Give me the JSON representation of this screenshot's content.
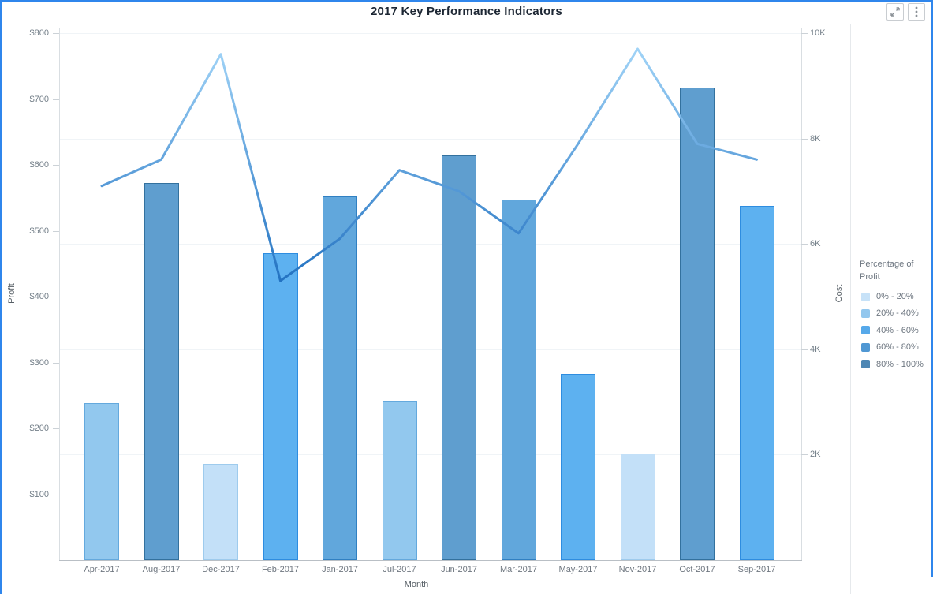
{
  "header": {
    "title": "2017 Key Performance Indicators"
  },
  "chart_data": {
    "type": "combo (bar + line)",
    "title": "2017 Key Performance Indicators",
    "categories": [
      "Apr-2017",
      "Aug-2017",
      "Dec-2017",
      "Feb-2017",
      "Jan-2017",
      "Jul-2017",
      "Jun-2017",
      "Mar-2017",
      "May-2017",
      "Nov-2017",
      "Oct-2017",
      "Sep-2017"
    ],
    "series": [
      {
        "name": "Profit",
        "type": "bar",
        "yaxis": "left",
        "values": [
          238,
          573,
          146,
          466,
          552,
          242,
          614,
          547,
          283,
          162,
          717,
          538
        ],
        "profit_bins": [
          "20% - 40%",
          "80% - 100%",
          "0% - 20%",
          "40% - 60%",
          "60% - 80%",
          "20% - 40%",
          "80% - 100%",
          "60% - 80%",
          "40% - 60%",
          "0% - 20%",
          "80% - 100%",
          "40% - 60%"
        ]
      },
      {
        "name": "Cost",
        "type": "line",
        "yaxis": "right",
        "values": [
          7100,
          7600,
          9600,
          5300,
          6100,
          7400,
          7000,
          6200,
          7900,
          9700,
          7900,
          7600
        ]
      }
    ],
    "x_axis": {
      "title": "Month"
    },
    "left_axis": {
      "title": "Profit",
      "tick_labels": [
        "$100",
        "$200",
        "$300",
        "$400",
        "$500",
        "$600",
        "$700",
        "$800"
      ],
      "min": 0,
      "max": 800
    },
    "right_axis": {
      "title": "Cost",
      "tick_labels": [
        "2K",
        "4K",
        "6K",
        "8K",
        "10K"
      ],
      "min": 0,
      "max": 10000
    },
    "grid": "horizontal gridlines aligned to right-axis ticks",
    "legend": {
      "position": "right",
      "title_lines": [
        "Percentage of",
        "Profit"
      ],
      "items": [
        {
          "label": "0% - 20%",
          "color": "#c7e2f8"
        },
        {
          "label": "20% - 40%",
          "color": "#92c7ee"
        },
        {
          "label": "40% - 60%",
          "color": "#56a9ea"
        },
        {
          "label": "60% - 80%",
          "color": "#4f97d3"
        },
        {
          "label": "80% - 100%",
          "color": "#4e87b4"
        }
      ]
    }
  },
  "styles": {
    "bin_palette": {
      "0% - 20%": {
        "fill": "#c3e0f8",
        "stroke": "#9ecbed"
      },
      "20% - 40%": {
        "fill": "#92c8ee",
        "stroke": "#64a9dd"
      },
      "40% - 60%": {
        "fill": "#5db1f0",
        "stroke": "#2e8de0"
      },
      "60% - 80%": {
        "fill": "#61a7dc",
        "stroke": "#3080c2"
      },
      "80% - 100%": {
        "fill": "#5f9ecf",
        "stroke": "#33719e"
      }
    },
    "line_gradient_top": "#a5d7f9",
    "line_gradient_bottom": "#2171c1",
    "frame_accent": "#2f86ec"
  }
}
